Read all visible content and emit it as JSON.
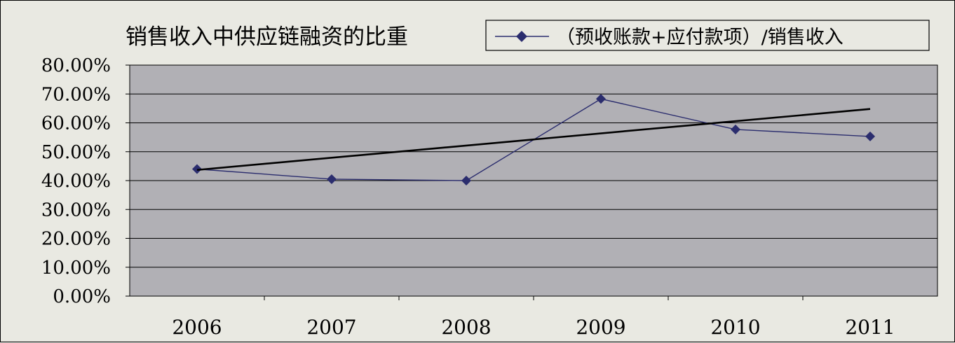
{
  "chart_data": {
    "type": "line",
    "title": "销售收入中供应链融资的比重",
    "xlabel": "",
    "ylabel": "",
    "categories": [
      "2006",
      "2007",
      "2008",
      "2009",
      "2010",
      "2011"
    ],
    "series": [
      {
        "name": "（预收账款+应付款项）/销售收入",
        "values": [
          0.44,
          0.405,
          0.4,
          0.683,
          0.577,
          0.553
        ],
        "color": "#2b2d6e",
        "marker": "diamond"
      }
    ],
    "trendline": {
      "type": "linear",
      "start": 0.437,
      "end": 0.648,
      "color": "#000000"
    },
    "y_tick_labels": [
      "0.00%",
      "10.00%",
      "20.00%",
      "30.00%",
      "40.00%",
      "50.00%",
      "60.00%",
      "70.00%",
      "80.00%"
    ],
    "ylim": [
      0,
      0.8
    ],
    "grid": true,
    "legend_position": "top-right",
    "colors": {
      "plot_background": "#b1b0b5",
      "page_background": "#e9e9e2",
      "gridline": "#000000"
    }
  }
}
